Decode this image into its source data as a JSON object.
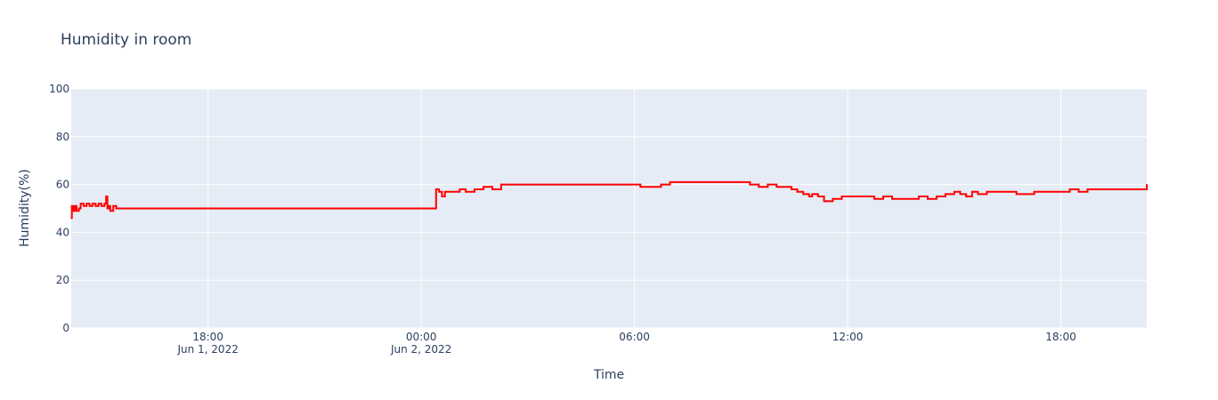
{
  "chart_data": {
    "type": "line",
    "title": "Humidity in room",
    "xlabel": "Time",
    "ylabel": "Humidity(%)",
    "ylim": [
      0,
      100
    ],
    "xlim": [
      "2022-06-01 14:09",
      "2022-06-02 20:25"
    ],
    "y_ticks": [
      "0",
      "20",
      "40",
      "60",
      "80",
      "100"
    ],
    "x_ticks": [
      {
        "t": "2022-06-01 18:00",
        "lines": [
          "18:00",
          "Jun 1, 2022"
        ]
      },
      {
        "t": "2022-06-02 00:00",
        "lines": [
          "00:00",
          "Jun 2, 2022"
        ]
      },
      {
        "t": "2022-06-02 06:00",
        "lines": [
          "06:00"
        ]
      },
      {
        "t": "2022-06-02 12:00",
        "lines": [
          "12:00"
        ]
      },
      {
        "t": "2022-06-02 18:00",
        "lines": [
          "18:00"
        ]
      }
    ],
    "grid": true,
    "background": "#e5ecf6",
    "grid_color": "#ffffff",
    "series": [
      {
        "color": "#ff0000",
        "x": [
          "2022-06-01 14:09",
          "2022-06-01 14:10",
          "2022-06-01 14:12",
          "2022-06-01 14:15",
          "2022-06-01 14:18",
          "2022-06-01 14:22",
          "2022-06-01 14:25",
          "2022-06-01 14:30",
          "2022-06-01 14:35",
          "2022-06-01 14:40",
          "2022-06-01 14:45",
          "2022-06-01 14:50",
          "2022-06-01 14:55",
          "2022-06-01 15:00",
          "2022-06-01 15:05",
          "2022-06-01 15:08",
          "2022-06-01 15:10",
          "2022-06-01 15:12",
          "2022-06-01 15:15",
          "2022-06-01 15:20",
          "2022-06-01 15:25",
          "2022-06-02 00:25",
          "2022-06-02 00:30",
          "2022-06-02 00:35",
          "2022-06-02 00:40",
          "2022-06-02 00:45",
          "2022-06-02 00:55",
          "2022-06-02 01:05",
          "2022-06-02 01:15",
          "2022-06-02 01:30",
          "2022-06-02 01:45",
          "2022-06-02 02:00",
          "2022-06-02 02:15",
          "2022-06-02 05:55",
          "2022-06-02 06:10",
          "2022-06-02 06:30",
          "2022-06-02 06:45",
          "2022-06-02 07:00",
          "2022-06-02 07:45",
          "2022-06-02 08:15",
          "2022-06-02 08:45",
          "2022-06-02 09:00",
          "2022-06-02 09:15",
          "2022-06-02 09:30",
          "2022-06-02 09:45",
          "2022-06-02 10:00",
          "2022-06-02 10:15",
          "2022-06-02 10:25",
          "2022-06-02 10:35",
          "2022-06-02 10:45",
          "2022-06-02 10:55",
          "2022-06-02 11:00",
          "2022-06-02 11:10",
          "2022-06-02 11:20",
          "2022-06-02 11:35",
          "2022-06-02 11:50",
          "2022-06-02 12:10",
          "2022-06-02 12:30",
          "2022-06-02 12:45",
          "2022-06-02 13:00",
          "2022-06-02 13:15",
          "2022-06-02 13:30",
          "2022-06-02 13:45",
          "2022-06-02 14:00",
          "2022-06-02 14:15",
          "2022-06-02 14:30",
          "2022-06-02 14:45",
          "2022-06-02 15:00",
          "2022-06-02 15:10",
          "2022-06-02 15:20",
          "2022-06-02 15:30",
          "2022-06-02 15:40",
          "2022-06-02 15:55",
          "2022-06-02 16:15",
          "2022-06-02 16:30",
          "2022-06-02 16:45",
          "2022-06-02 17:00",
          "2022-06-02 17:15",
          "2022-06-02 17:45",
          "2022-06-02 18:00",
          "2022-06-02 18:15",
          "2022-06-02 18:30",
          "2022-06-02 18:45",
          "2022-06-02 19:00",
          "2022-06-02 19:30",
          "2022-06-02 19:45",
          "2022-06-02 20:25"
        ],
        "y": [
          46,
          51,
          49,
          51,
          49,
          50,
          52,
          51,
          52,
          51,
          52,
          51,
          52,
          51,
          52,
          55,
          50,
          51,
          49,
          51,
          50,
          58,
          57,
          55,
          57,
          57,
          57,
          58,
          57,
          58,
          59,
          58,
          60,
          60,
          59,
          59,
          60,
          61,
          61,
          61,
          61,
          61,
          60,
          59,
          60,
          59,
          59,
          58,
          57,
          56,
          55,
          56,
          55,
          53,
          54,
          55,
          55,
          55,
          54,
          55,
          54,
          54,
          54,
          55,
          54,
          55,
          56,
          57,
          56,
          55,
          57,
          56,
          57,
          57,
          57,
          56,
          56,
          57,
          57,
          57,
          58,
          57,
          58,
          58,
          58,
          58,
          60
        ]
      }
    ]
  }
}
